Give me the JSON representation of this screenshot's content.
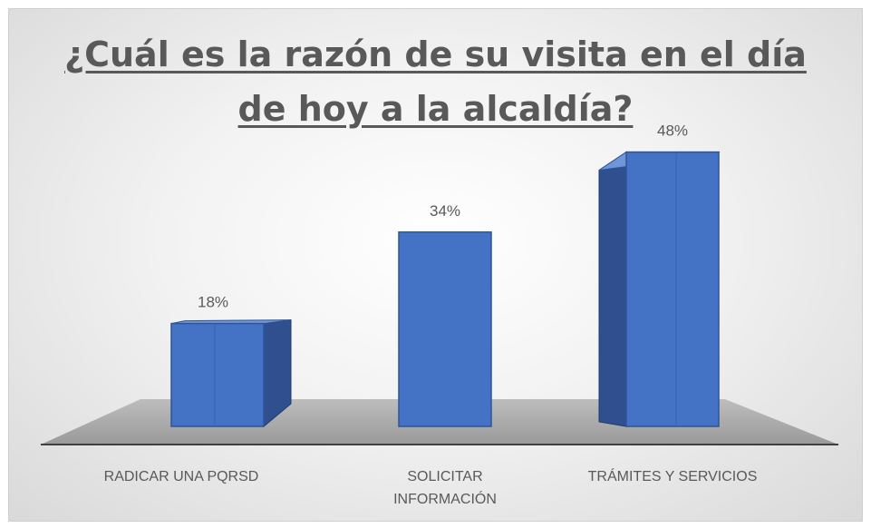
{
  "chart_data": {
    "type": "bar",
    "title_lines": [
      "¿Cuál es la razón de su visita en el día",
      "de hoy a la alcaldía?"
    ],
    "categories": [
      [
        "RADICAR UNA PQRSD"
      ],
      [
        "SOLICITAR",
        "INFORMACIÓN"
      ],
      [
        "TRÁMITES Y SERVICIOS"
      ]
    ],
    "values": [
      18,
      34,
      48
    ],
    "value_labels": [
      "18%",
      "34%",
      "48%"
    ],
    "ylim": [
      0,
      50
    ],
    "colors": {
      "front": "#4472c4",
      "side": "#2f4f8f",
      "top": "#6f96d8",
      "floor": "#a6a6a6"
    }
  }
}
